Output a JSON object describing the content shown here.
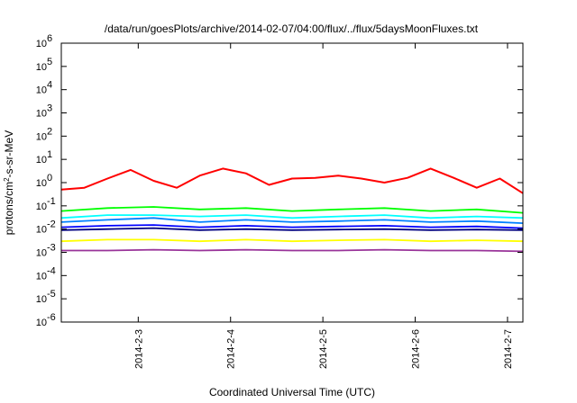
{
  "chart_data": {
    "type": "line",
    "title": "/data/run/goesPlots/archive/2014-02-07/04:00/flux/../flux/5daysMoonFluxes.txt",
    "xlabel": "Coordinated Universal Time (UTC)",
    "ylabel_parts": [
      "protons/cm",
      "2",
      "-s-sr-MeV"
    ],
    "xlim": [
      "2014-02-02T04:00",
      "2014-02-07T04:00"
    ],
    "ylim": [
      1e-06,
      1000000.0
    ],
    "yscale": "log",
    "grid": false,
    "legend": "none",
    "y_ticks": [
      {
        "mantissa": "10",
        "exp": "-6",
        "value": 1e-06
      },
      {
        "mantissa": "10",
        "exp": "-5",
        "value": 1e-05
      },
      {
        "mantissa": "10",
        "exp": "-4",
        "value": 0.0001
      },
      {
        "mantissa": "10",
        "exp": "-3",
        "value": 0.001
      },
      {
        "mantissa": "10",
        "exp": "-2",
        "value": 0.01
      },
      {
        "mantissa": "10",
        "exp": "-1",
        "value": 0.1
      },
      {
        "mantissa": "10",
        "exp": "0",
        "value": 1
      },
      {
        "mantissa": "10",
        "exp": "1",
        "value": 10
      },
      {
        "mantissa": "10",
        "exp": "2",
        "value": 100
      },
      {
        "mantissa": "10",
        "exp": "3",
        "value": 1000
      },
      {
        "mantissa": "10",
        "exp": "4",
        "value": 10000
      },
      {
        "mantissa": "10",
        "exp": "5",
        "value": 100000
      },
      {
        "mantissa": "10",
        "exp": "6",
        "value": 1000000
      }
    ],
    "x_ticks": [
      {
        "label": "2014-2-3",
        "value": "2014-02-03T00:00"
      },
      {
        "label": "2014-2-4",
        "value": "2014-02-04T00:00"
      },
      {
        "label": "2014-2-5",
        "value": "2014-02-05T00:00"
      },
      {
        "label": "2014-2-6",
        "value": "2014-02-06T00:00"
      },
      {
        "label": "2014-2-7",
        "value": "2014-02-07T00:00"
      }
    ],
    "series": [
      {
        "color": "#ff0000",
        "x": [
          "2014-02-02T04:00",
          "2014-02-02T10:00",
          "2014-02-02T16:00",
          "2014-02-02T22:00",
          "2014-02-03T04:00",
          "2014-02-03T10:00",
          "2014-02-03T16:00",
          "2014-02-03T22:00",
          "2014-02-04T04:00",
          "2014-02-04T10:00",
          "2014-02-04T16:00",
          "2014-02-04T22:00",
          "2014-02-05T04:00",
          "2014-02-05T10:00",
          "2014-02-05T16:00",
          "2014-02-05T22:00",
          "2014-02-06T04:00",
          "2014-02-06T10:00",
          "2014-02-06T16:00",
          "2014-02-06T22:00",
          "2014-02-07T04:00"
        ],
        "y": [
          0.5,
          0.6,
          1.5,
          3.5,
          1.2,
          0.6,
          2.0,
          4.0,
          2.5,
          0.8,
          1.5,
          1.6,
          2.0,
          1.5,
          1.0,
          1.6,
          4.0,
          1.6,
          0.6,
          1.5,
          0.35
        ]
      },
      {
        "color": "#00ff00",
        "x": [
          "2014-02-02T04:00",
          "2014-02-02T16:00",
          "2014-02-03T04:00",
          "2014-02-03T16:00",
          "2014-02-04T04:00",
          "2014-02-04T16:00",
          "2014-02-05T04:00",
          "2014-02-05T16:00",
          "2014-02-06T04:00",
          "2014-02-06T16:00",
          "2014-02-07T04:00"
        ],
        "y": [
          0.06,
          0.08,
          0.09,
          0.07,
          0.08,
          0.06,
          0.07,
          0.08,
          0.06,
          0.07,
          0.05
        ]
      },
      {
        "color": "#00ffff",
        "x": [
          "2014-02-02T04:00",
          "2014-02-02T16:00",
          "2014-02-03T04:00",
          "2014-02-03T16:00",
          "2014-02-04T04:00",
          "2014-02-04T16:00",
          "2014-02-05T04:00",
          "2014-02-05T16:00",
          "2014-02-06T04:00",
          "2014-02-06T16:00",
          "2014-02-07T04:00"
        ],
        "y": [
          0.03,
          0.04,
          0.04,
          0.035,
          0.04,
          0.03,
          0.035,
          0.04,
          0.03,
          0.035,
          0.03
        ]
      },
      {
        "color": "#0080ff",
        "x": [
          "2014-02-02T04:00",
          "2014-02-02T16:00",
          "2014-02-03T04:00",
          "2014-02-03T16:00",
          "2014-02-04T04:00",
          "2014-02-04T16:00",
          "2014-02-05T04:00",
          "2014-02-05T16:00",
          "2014-02-06T04:00",
          "2014-02-06T16:00",
          "2014-02-07T04:00"
        ],
        "y": [
          0.02,
          0.025,
          0.03,
          0.02,
          0.025,
          0.02,
          0.022,
          0.025,
          0.02,
          0.022,
          0.018
        ]
      },
      {
        "color": "#0000ff",
        "x": [
          "2014-02-02T04:00",
          "2014-02-02T16:00",
          "2014-02-03T04:00",
          "2014-02-03T16:00",
          "2014-02-04T04:00",
          "2014-02-04T16:00",
          "2014-02-05T04:00",
          "2014-02-05T16:00",
          "2014-02-06T04:00",
          "2014-02-06T16:00",
          "2014-02-07T04:00"
        ],
        "y": [
          0.012,
          0.014,
          0.015,
          0.012,
          0.014,
          0.012,
          0.013,
          0.014,
          0.012,
          0.013,
          0.011
        ]
      },
      {
        "color": "#000080",
        "x": [
          "2014-02-02T04:00",
          "2014-02-02T16:00",
          "2014-02-03T04:00",
          "2014-02-03T16:00",
          "2014-02-04T04:00",
          "2014-02-04T16:00",
          "2014-02-05T04:00",
          "2014-02-05T16:00",
          "2014-02-06T04:00",
          "2014-02-06T16:00",
          "2014-02-07T04:00"
        ],
        "y": [
          0.009,
          0.01,
          0.011,
          0.009,
          0.01,
          0.009,
          0.0095,
          0.01,
          0.009,
          0.0095,
          0.009
        ]
      },
      {
        "color": "#ffff00",
        "x": [
          "2014-02-02T04:00",
          "2014-02-02T16:00",
          "2014-02-03T04:00",
          "2014-02-03T16:00",
          "2014-02-04T04:00",
          "2014-02-04T16:00",
          "2014-02-05T04:00",
          "2014-02-05T16:00",
          "2014-02-06T04:00",
          "2014-02-06T16:00",
          "2014-02-07T04:00"
        ],
        "y": [
          0.003,
          0.0035,
          0.0035,
          0.003,
          0.0035,
          0.003,
          0.0033,
          0.0035,
          0.003,
          0.0033,
          0.003
        ]
      },
      {
        "color": "#993399",
        "x": [
          "2014-02-02T04:00",
          "2014-02-02T16:00",
          "2014-02-03T04:00",
          "2014-02-03T16:00",
          "2014-02-04T04:00",
          "2014-02-04T16:00",
          "2014-02-05T04:00",
          "2014-02-05T16:00",
          "2014-02-06T04:00",
          "2014-02-06T16:00",
          "2014-02-07T04:00"
        ],
        "y": [
          0.0012,
          0.0012,
          0.0013,
          0.0012,
          0.0013,
          0.0012,
          0.0012,
          0.0013,
          0.0012,
          0.0012,
          0.0011
        ]
      }
    ]
  }
}
